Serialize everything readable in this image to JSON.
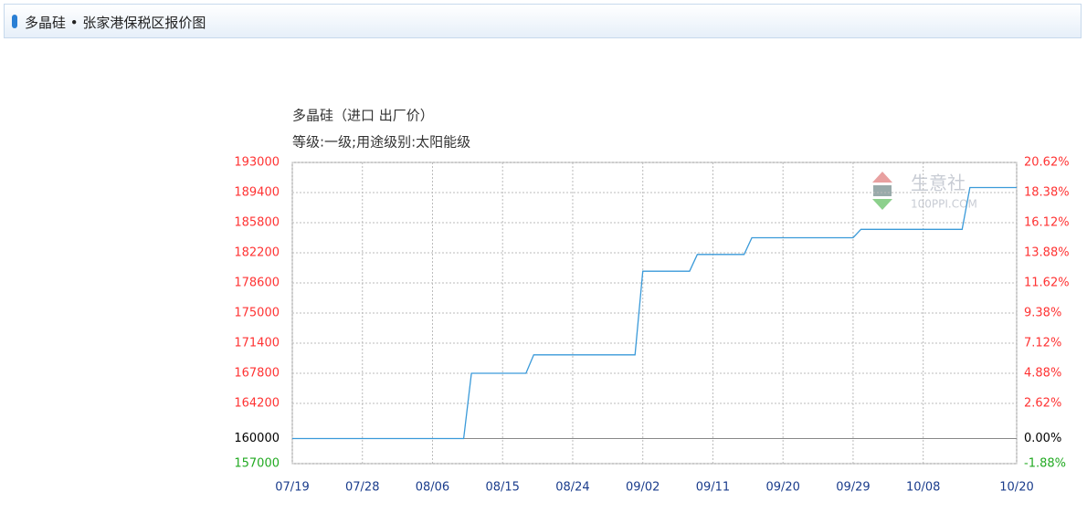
{
  "header": {
    "title": "多晶硅 • 张家港保税区报价图"
  },
  "chart_data": {
    "type": "line",
    "title": "多晶硅（进口 出厂价）",
    "subtitle": "等级:一级;用途级别:太阳能级",
    "watermark": {
      "name": "生意社",
      "site": "100PPI.COM"
    },
    "x": [
      "07/19",
      "08/10",
      "08/11",
      "08/18",
      "08/19",
      "09/01",
      "09/02",
      "09/08",
      "09/09",
      "09/15",
      "09/16",
      "09/29",
      "09/30",
      "10/13",
      "10/14",
      "10/20"
    ],
    "series": [
      {
        "name": "多晶硅",
        "color": "#3a9ad9",
        "values": [
          160000,
          160000,
          167800,
          167800,
          170000,
          170000,
          180000,
          180000,
          182000,
          182000,
          184000,
          184000,
          185000,
          185000,
          190000,
          190000
        ]
      }
    ],
    "xlim": [
      "07/19",
      "10/20"
    ],
    "xticks": [
      "07/19",
      "07/28",
      "08/06",
      "08/15",
      "08/24",
      "09/02",
      "09/11",
      "09/20",
      "09/29",
      "10/08",
      "10/20"
    ],
    "ylim": [
      157000,
      193000
    ],
    "yticks": [
      157000,
      160000,
      164200,
      167800,
      171400,
      175000,
      178600,
      182200,
      185800,
      189400,
      193000
    ],
    "y2lim": [
      -1.88,
      20.62
    ],
    "y2ticks": [
      {
        "value": -1.88,
        "label": "-1.88%"
      },
      {
        "value": 0,
        "label": "0.00%"
      },
      {
        "value": 2.62,
        "label": "2.62%"
      },
      {
        "value": 4.88,
        "label": "4.88%"
      },
      {
        "value": 7.12,
        "label": "7.12%"
      },
      {
        "value": 9.38,
        "label": "9.38%"
      },
      {
        "value": 11.62,
        "label": "11.62%"
      },
      {
        "value": 13.88,
        "label": "13.88%"
      },
      {
        "value": 16.12,
        "label": "16.12%"
      },
      {
        "value": 18.38,
        "label": "18.38%"
      },
      {
        "value": 20.62,
        "label": "20.62%"
      }
    ],
    "baseline": 160000,
    "above_color": "#ff3333",
    "base_color": "#000000",
    "below_color": "#22aa22",
    "grid": true
  }
}
